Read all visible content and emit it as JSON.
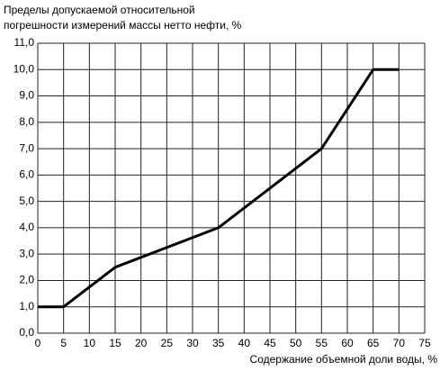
{
  "chart_data": {
    "type": "line",
    "ylabel": [
      "Пределы допускаемой относительной",
      "погрешности измерений массы нетто нефти, %"
    ],
    "xlabel": "Содержание объемной доли воды, %",
    "x": [
      0,
      5,
      15,
      35,
      55,
      65,
      70
    ],
    "series": [
      {
        "color": "#000000",
        "values": [
          1,
          1,
          2.5,
          4,
          7,
          10,
          10
        ]
      }
    ],
    "xlim": [
      0,
      75
    ],
    "xticks": [
      0,
      5,
      10,
      15,
      20,
      25,
      30,
      35,
      40,
      45,
      50,
      55,
      60,
      65,
      70,
      75
    ],
    "ylim": [
      0,
      11
    ],
    "yticks": [
      {
        "value": 0,
        "label": "0,0"
      },
      {
        "value": 1,
        "label": "1,0"
      },
      {
        "value": 2,
        "label": "2,0"
      },
      {
        "value": 3,
        "label": "3,0"
      },
      {
        "value": 4,
        "label": "4,0"
      },
      {
        "value": 5,
        "label": "5,0"
      },
      {
        "value": 6,
        "label": "6,0"
      },
      {
        "value": 7,
        "label": "7,0"
      },
      {
        "value": 8,
        "label": "8,0"
      },
      {
        "value": 9,
        "label": "9,0"
      },
      {
        "value": 10,
        "label": "10,0"
      },
      {
        "value": 11,
        "label": "11,0"
      }
    ],
    "grid": true
  }
}
